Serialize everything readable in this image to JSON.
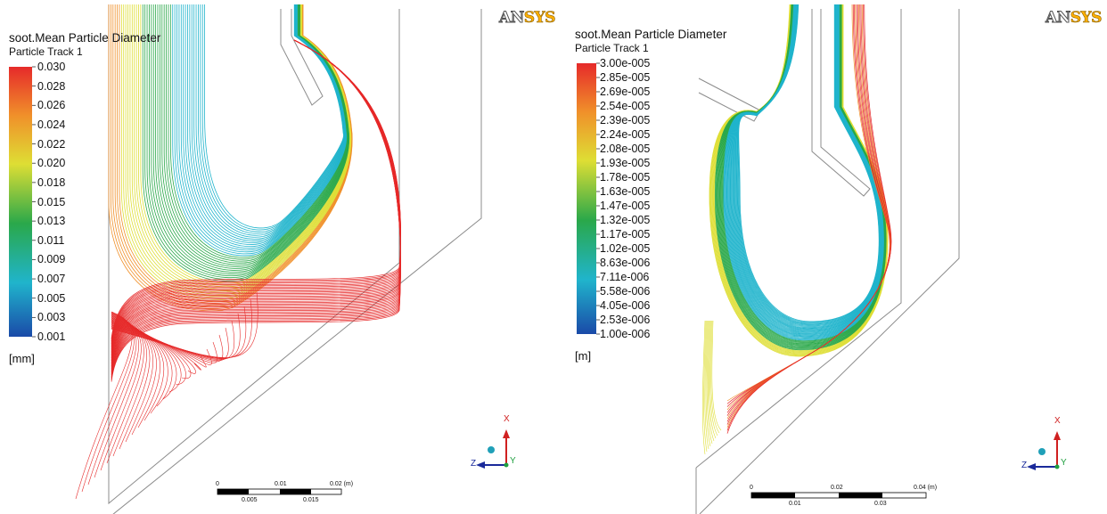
{
  "logo": {
    "part1": "AN",
    "part2": "SYS"
  },
  "left": {
    "legend_title": "soot.Mean Particle Diameter",
    "legend_subtitle": "Particle Track 1",
    "ticks": [
      "0.030",
      "0.028",
      "0.026",
      "0.024",
      "0.022",
      "0.020",
      "0.018",
      "0.015",
      "0.013",
      "0.011",
      "0.009",
      "0.007",
      "0.005",
      "0.003",
      "0.001"
    ],
    "unit": "[mm]",
    "scale_top": [
      "0",
      "0.01",
      "0.02  (m)"
    ],
    "scale_bottom": [
      "0.005",
      "0.015"
    ]
  },
  "right": {
    "legend_title": "soot.Mean Particle Diameter",
    "legend_subtitle": "Particle Track 1",
    "ticks": [
      "3.00e-005",
      "2.85e-005",
      "2.69e-005",
      "2.54e-005",
      "2.39e-005",
      "2.24e-005",
      "2.08e-005",
      "1.93e-005",
      "1.78e-005",
      "1.63e-005",
      "1.47e-005",
      "1.32e-005",
      "1.17e-005",
      "1.02e-005",
      "8.63e-006",
      "7.11e-006",
      "5.58e-006",
      "4.05e-006",
      "2.53e-006",
      "1.00e-006"
    ],
    "unit": "[m]",
    "scale_top": [
      "0",
      "0.02",
      "0.04  (m)"
    ],
    "scale_bottom": [
      "0.01",
      "0.03"
    ]
  },
  "axes": {
    "x": "X",
    "y": "Y",
    "z": "Z"
  },
  "colors": {
    "red": "#e62a2a",
    "orange": "#f0902a",
    "yellow": "#dede34",
    "green": "#2aa84a",
    "cyan": "#20b4cc",
    "blue": "#1a4aa8"
  }
}
